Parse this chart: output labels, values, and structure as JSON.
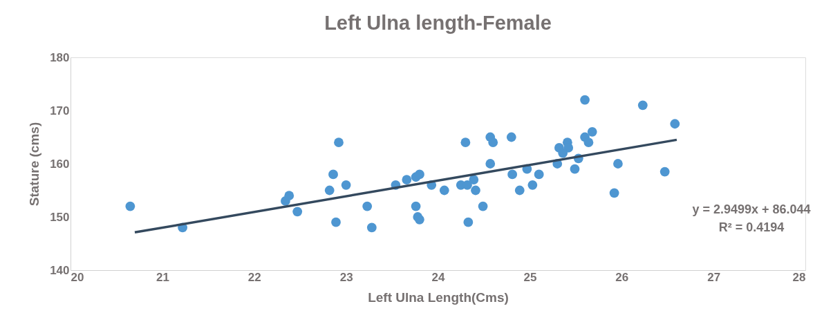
{
  "chart_data": {
    "type": "scatter",
    "title": "Left Ulna length-Female",
    "xlabel": "Left Ulna Length(Cms)",
    "ylabel": "Stature (cms)",
    "xlim": [
      20,
      28
    ],
    "xticks": [
      20,
      21,
      22,
      23,
      24,
      25,
      26,
      27,
      28
    ],
    "ylim": [
      140,
      180
    ],
    "yticks": [
      140,
      150,
      160,
      170,
      180
    ],
    "grid": false,
    "legend": false,
    "series": [
      {
        "color": "#4e96d1",
        "marker": "circle",
        "x": [
          20.65,
          21.22,
          22.34,
          22.38,
          22.47,
          22.82,
          22.86,
          22.89,
          22.92,
          23.0,
          23.23,
          23.28,
          23.54,
          23.66,
          23.76,
          23.8,
          23.76,
          23.78,
          23.8,
          23.93,
          24.07,
          24.25,
          24.32,
          24.39,
          24.41,
          24.3,
          24.33,
          24.49,
          24.57,
          24.6,
          24.57,
          24.8,
          24.81,
          24.89,
          24.97,
          25.03,
          25.1,
          25.3,
          25.32,
          25.41,
          25.42,
          25.36,
          25.49,
          25.53,
          25.6,
          25.6,
          25.68,
          25.64,
          25.92,
          25.96,
          26.23,
          26.47,
          26.58
        ],
        "values": [
          152,
          148,
          153,
          154,
          151,
          155,
          158,
          149,
          164,
          156,
          152,
          148,
          156,
          157,
          157.5,
          158,
          152,
          150,
          149.5,
          156,
          155,
          156,
          156,
          157,
          155,
          164,
          149,
          152,
          165,
          164,
          160,
          165,
          158,
          155,
          159,
          156,
          158,
          160,
          163,
          164,
          163,
          162,
          159,
          161,
          172,
          165,
          166,
          164,
          154.5,
          160,
          171,
          158.5,
          167.5
        ]
      },
      {
        "type": "line",
        "color": "#34495e",
        "x": [
          20.7,
          26.6
        ],
        "values": [
          147.1,
          164.5
        ]
      }
    ],
    "annotations": [
      "y = 2.9499x + 86.044\nR² = 0.4194"
    ]
  }
}
